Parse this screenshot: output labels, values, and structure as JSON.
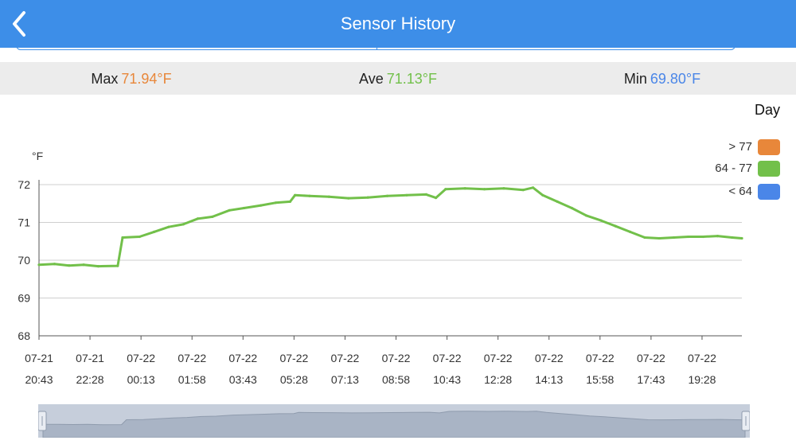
{
  "header": {
    "title": "Sensor History",
    "back_icon": "chevron-left-icon"
  },
  "stats": {
    "max": {
      "label": "Max",
      "value": "71.94°F",
      "color": "#e8873a"
    },
    "ave": {
      "label": "Ave",
      "value": "71.13°F",
      "color": "#72c04a"
    },
    "min": {
      "label": "Min",
      "value": "69.80°F",
      "color": "#4a86e8"
    }
  },
  "range_label": "Day",
  "legend": [
    {
      "label": "> 77",
      "color": "#e8873a"
    },
    {
      "label": "64 - 77",
      "color": "#72c04a"
    },
    {
      "label": "< 64",
      "color": "#4a86e8"
    }
  ],
  "chart_data": {
    "type": "line",
    "ylabel": "°F",
    "ylim": [
      68,
      72
    ],
    "yticks": [
      "72",
      "71",
      "70",
      "69",
      "68"
    ],
    "xticks": [
      {
        "date": "07-21",
        "time": "20:43"
      },
      {
        "date": "07-21",
        "time": "22:28"
      },
      {
        "date": "07-22",
        "time": "00:13"
      },
      {
        "date": "07-22",
        "time": "01:58"
      },
      {
        "date": "07-22",
        "time": "03:43"
      },
      {
        "date": "07-22",
        "time": "05:28"
      },
      {
        "date": "07-22",
        "time": "07:13"
      },
      {
        "date": "07-22",
        "time": "08:58"
      },
      {
        "date": "07-22",
        "time": "10:43"
      },
      {
        "date": "07-22",
        "time": "12:28"
      },
      {
        "date": "07-22",
        "time": "14:13"
      },
      {
        "date": "07-22",
        "time": "15:58"
      },
      {
        "date": "07-22",
        "time": "17:43"
      },
      {
        "date": "07-22",
        "time": "19:28"
      }
    ],
    "series": [
      {
        "color": "#72c04a",
        "x": [
          "07-21 20:43",
          "07-21 21:15",
          "07-21 21:45",
          "07-21 22:15",
          "07-21 22:45",
          "07-21 23:25",
          "07-21 23:35",
          "07-22 00:10",
          "07-22 00:40",
          "07-22 01:10",
          "07-22 01:40",
          "07-22 02:10",
          "07-22 02:40",
          "07-22 03:15",
          "07-22 03:45",
          "07-22 04:20",
          "07-22 04:50",
          "07-22 05:20",
          "07-22 05:30",
          "07-22 06:00",
          "07-22 06:40",
          "07-22 07:20",
          "07-22 08:00",
          "07-22 08:40",
          "07-22 09:20",
          "07-22 10:00",
          "07-22 10:20",
          "07-22 10:40",
          "07-22 11:20",
          "07-22 12:00",
          "07-22 12:40",
          "07-22 13:20",
          "07-22 13:40",
          "07-22 14:00",
          "07-22 14:30",
          "07-22 15:00",
          "07-22 15:30",
          "07-22 16:00",
          "07-22 16:30",
          "07-22 17:00",
          "07-22 17:30",
          "07-22 18:00",
          "07-22 18:30",
          "07-22 19:00",
          "07-22 19:30",
          "07-22 20:00",
          "07-22 20:30",
          "07-22 20:50"
        ],
        "values": [
          69.88,
          69.9,
          69.86,
          69.88,
          69.84,
          69.85,
          70.6,
          70.62,
          70.75,
          70.88,
          70.95,
          71.1,
          71.15,
          71.32,
          71.38,
          71.45,
          71.52,
          71.55,
          71.72,
          71.7,
          71.68,
          71.64,
          71.66,
          71.7,
          71.72,
          71.74,
          71.65,
          71.88,
          71.9,
          71.88,
          71.9,
          71.86,
          71.92,
          71.72,
          71.55,
          71.38,
          71.18,
          71.05,
          70.9,
          70.75,
          70.6,
          70.58,
          70.6,
          70.62,
          70.62,
          70.64,
          70.6,
          70.58
        ]
      }
    ]
  }
}
